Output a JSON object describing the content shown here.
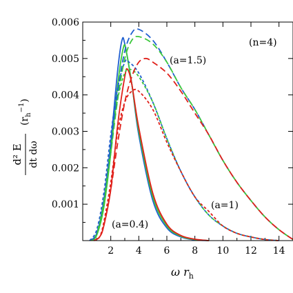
{
  "chart_data": {
    "type": "line",
    "title": "",
    "xlim": [
      0,
      15
    ],
    "ylim": [
      0,
      0.006
    ],
    "x_ticks": [
      2,
      4,
      6,
      8,
      10,
      12,
      14
    ],
    "y_ticks": [
      0.001,
      0.002,
      0.003,
      0.004,
      0.005,
      0.006
    ],
    "y_tick_labels": [
      "0.001",
      "0.002",
      "0.003",
      "0.004",
      "0.005",
      "0.006"
    ],
    "x_tick_labels": [
      "2",
      "4",
      "6",
      "8",
      "10",
      "12",
      "14"
    ],
    "xlabel": {
      "main": "ω r",
      "sub": "h"
    },
    "ylabel": {
      "num": "d² E",
      "den": "dt dω",
      "unit": "(r",
      "unit_sub": "h",
      "unit_sup": "−1",
      "unit_close": ")"
    },
    "annotations": {
      "n": "(n=4)",
      "a15": "(a=1.5)",
      "a1": "(a=1)",
      "a04": "(a=0.4)"
    },
    "colors": {
      "blue": "#1f5fd0",
      "green": "#3cc83c",
      "red": "#e0201a"
    },
    "series": [
      {
        "group": "a=0.4",
        "color": "blue",
        "dash": "solid",
        "points": [
          [
            0.5,
            0
          ],
          [
            1.0,
            0.0002
          ],
          [
            1.5,
            0.0011
          ],
          [
            2.0,
            0.0027
          ],
          [
            2.5,
            0.0047
          ],
          [
            2.8,
            0.0055
          ],
          [
            3.0,
            0.0054
          ],
          [
            3.5,
            0.0043
          ],
          [
            4.0,
            0.0029
          ],
          [
            5.0,
            0.0011
          ],
          [
            6.0,
            0.00035
          ],
          [
            7.0,
            0.0001
          ],
          [
            8.0,
            2e-05
          ],
          [
            9.0,
            0
          ]
        ]
      },
      {
        "group": "a=0.4",
        "color": "green",
        "dash": "solid",
        "points": [
          [
            0.6,
            0
          ],
          [
            1.0,
            0.00015
          ],
          [
            1.5,
            0.0009
          ],
          [
            2.0,
            0.0024
          ],
          [
            2.5,
            0.0043
          ],
          [
            2.9,
            0.0053
          ],
          [
            3.1,
            0.0052
          ],
          [
            3.5,
            0.0043
          ],
          [
            4.0,
            0.003
          ],
          [
            5.0,
            0.0012
          ],
          [
            6.0,
            0.0004
          ],
          [
            7.0,
            0.00012
          ],
          [
            8.0,
            3e-05
          ],
          [
            9.0,
            0
          ]
        ]
      },
      {
        "group": "a=0.4",
        "color": "red",
        "dash": "solid",
        "points": [
          [
            0.8,
            0
          ],
          [
            1.2,
            0.0001
          ],
          [
            1.5,
            0.0004
          ],
          [
            2.0,
            0.0014
          ],
          [
            2.5,
            0.0032
          ],
          [
            3.0,
            0.0045
          ],
          [
            3.2,
            0.0047
          ],
          [
            3.5,
            0.0043
          ],
          [
            4.0,
            0.0031
          ],
          [
            5.0,
            0.0013
          ],
          [
            6.0,
            0.00045
          ],
          [
            7.0,
            0.00014
          ],
          [
            8.0,
            4e-05
          ],
          [
            9.0,
            0
          ]
        ]
      },
      {
        "group": "a=1",
        "color": "blue",
        "dash": "short",
        "points": [
          [
            0.5,
            0
          ],
          [
            1.0,
            0.0003
          ],
          [
            1.5,
            0.0013
          ],
          [
            2.0,
            0.0029
          ],
          [
            2.5,
            0.0042
          ],
          [
            3.0,
            0.0049
          ],
          [
            3.3,
            0.0049
          ],
          [
            4.0,
            0.0046
          ],
          [
            5.0,
            0.0038
          ],
          [
            6.0,
            0.0028
          ],
          [
            7.0,
            0.0019
          ],
          [
            8.0,
            0.0012
          ],
          [
            9.0,
            0.0007
          ],
          [
            10.0,
            0.0004
          ],
          [
            11.0,
            0.0002
          ],
          [
            12.0,
            0.0001
          ],
          [
            13.0,
            3e-05
          ],
          [
            14.0,
            0
          ]
        ]
      },
      {
        "group": "a=1",
        "color": "green",
        "dash": "short",
        "points": [
          [
            0.6,
            0
          ],
          [
            1.0,
            0.0002
          ],
          [
            1.5,
            0.0011
          ],
          [
            2.0,
            0.0026
          ],
          [
            2.5,
            0.0039
          ],
          [
            3.0,
            0.0046
          ],
          [
            3.4,
            0.0047
          ],
          [
            4.0,
            0.0045
          ],
          [
            5.0,
            0.0038
          ],
          [
            6.0,
            0.0028
          ],
          [
            7.0,
            0.0019
          ],
          [
            8.0,
            0.0012
          ],
          [
            9.0,
            0.0007
          ],
          [
            10.0,
            0.0004
          ],
          [
            11.0,
            0.0002
          ],
          [
            12.0,
            0.0001
          ],
          [
            13.0,
            3e-05
          ],
          [
            14.0,
            0
          ]
        ]
      },
      {
        "group": "a=1",
        "color": "red",
        "dash": "short",
        "points": [
          [
            0.8,
            0
          ],
          [
            1.2,
            0.0001
          ],
          [
            1.5,
            0.0005
          ],
          [
            2.0,
            0.0016
          ],
          [
            2.5,
            0.003
          ],
          [
            3.0,
            0.0038
          ],
          [
            3.5,
            0.0041
          ],
          [
            4.0,
            0.0041
          ],
          [
            5.0,
            0.0036
          ],
          [
            6.0,
            0.0027
          ],
          [
            7.0,
            0.0019
          ],
          [
            8.0,
            0.0012
          ],
          [
            9.0,
            0.0008
          ],
          [
            10.0,
            0.0004
          ],
          [
            11.0,
            0.0002
          ],
          [
            12.0,
            0.0001
          ],
          [
            13.0,
            3e-05
          ],
          [
            14.0,
            0
          ]
        ]
      },
      {
        "group": "a=1.5",
        "color": "blue",
        "dash": "long",
        "points": [
          [
            0.5,
            0
          ],
          [
            1.0,
            0.0002
          ],
          [
            1.5,
            0.0011
          ],
          [
            2.0,
            0.0026
          ],
          [
            2.5,
            0.0041
          ],
          [
            3.0,
            0.0052
          ],
          [
            3.5,
            0.0057
          ],
          [
            4.0,
            0.0058
          ],
          [
            5.0,
            0.0055
          ],
          [
            6.0,
            0.0049
          ],
          [
            7.0,
            0.0042
          ],
          [
            8.0,
            0.0036
          ],
          [
            9.0,
            0.0029
          ],
          [
            10.0,
            0.0022
          ],
          [
            11.0,
            0.0016
          ],
          [
            12.0,
            0.0011
          ],
          [
            13.0,
            0.00065
          ],
          [
            14.0,
            0.0003
          ],
          [
            15.0,
            3e-05
          ]
        ]
      },
      {
        "group": "a=1.5",
        "color": "green",
        "dash": "long",
        "points": [
          [
            0.6,
            0
          ],
          [
            1.0,
            0.00015
          ],
          [
            1.5,
            0.001
          ],
          [
            2.0,
            0.0024
          ],
          [
            2.5,
            0.0039
          ],
          [
            3.0,
            0.005
          ],
          [
            3.5,
            0.0055
          ],
          [
            4.0,
            0.0056
          ],
          [
            5.0,
            0.0054
          ],
          [
            6.0,
            0.0049
          ],
          [
            7.0,
            0.0042
          ],
          [
            8.0,
            0.0036
          ],
          [
            9.0,
            0.0029
          ],
          [
            10.0,
            0.0022
          ],
          [
            11.0,
            0.0016
          ],
          [
            12.0,
            0.0011
          ],
          [
            13.0,
            0.00065
          ],
          [
            14.0,
            0.0003
          ],
          [
            15.0,
            3e-05
          ]
        ]
      },
      {
        "group": "a=1.5",
        "color": "red",
        "dash": "long",
        "points": [
          [
            0.8,
            0
          ],
          [
            1.2,
            0.0001
          ],
          [
            1.5,
            0.0004
          ],
          [
            2.0,
            0.0014
          ],
          [
            2.5,
            0.0027
          ],
          [
            3.0,
            0.0038
          ],
          [
            3.5,
            0.0045
          ],
          [
            4.0,
            0.0049
          ],
          [
            4.5,
            0.005
          ],
          [
            5.0,
            0.0049
          ],
          [
            6.0,
            0.0046
          ],
          [
            7.0,
            0.0041
          ],
          [
            8.0,
            0.0035
          ],
          [
            9.0,
            0.0029
          ],
          [
            10.0,
            0.0022
          ],
          [
            11.0,
            0.0016
          ],
          [
            12.0,
            0.0011
          ],
          [
            13.0,
            0.00065
          ],
          [
            14.0,
            0.0003
          ],
          [
            15.0,
            3e-05
          ]
        ]
      }
    ]
  }
}
